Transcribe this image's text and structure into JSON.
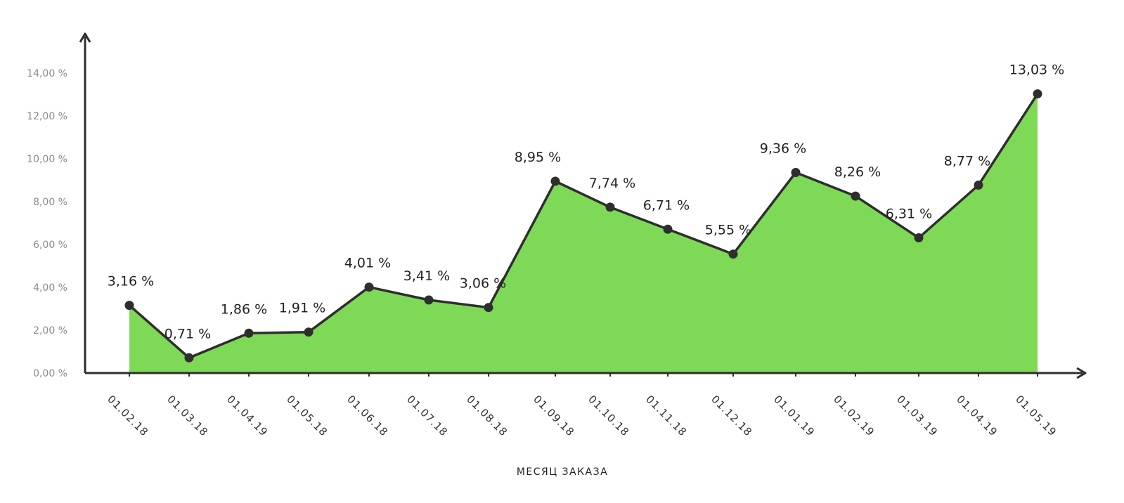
{
  "chart_data": {
    "type": "area",
    "xlabel": "МЕСЯЦ ЗАКАЗА",
    "ylabel": "",
    "ylim": [
      0,
      14
    ],
    "y_ticks": [
      "0,00 %",
      "2,00 %",
      "4,00 %",
      "6,00 %",
      "8,00 %",
      "10,00 %",
      "12,00 %",
      "14,00 %"
    ],
    "categories": [
      "01.02.18",
      "01.03.18",
      "01.04.19",
      "01.05.18",
      "01.06.18",
      "01.07.18",
      "01.08.18",
      "01.09.18",
      "01.10.18",
      "01.11.18",
      "01.12.18",
      "01.01.19",
      "01.02.19",
      "01.03.19",
      "01.04.19",
      "01.05.19"
    ],
    "values": [
      3.16,
      0.71,
      1.86,
      1.91,
      4.01,
      3.41,
      3.06,
      8.95,
      7.74,
      6.71,
      5.55,
      9.36,
      8.26,
      6.31,
      8.77,
      13.03
    ],
    "data_labels": [
      "3,16 %",
      "0,71 %",
      "1,86 %",
      "1,91 %",
      "4,01 %",
      "3,41 %",
      "3,06 %",
      "8,95 %",
      "7,74 %",
      "6,71 %",
      "5,55 %",
      "9,36 %",
      "8,26 %",
      "6,31 %",
      "8,77 %",
      "13,03 %"
    ],
    "grid": false,
    "legend": "none",
    "colors": {
      "fill": "#7ed957",
      "line": "#2e2e2e",
      "axis": "#2e2e2e"
    }
  }
}
